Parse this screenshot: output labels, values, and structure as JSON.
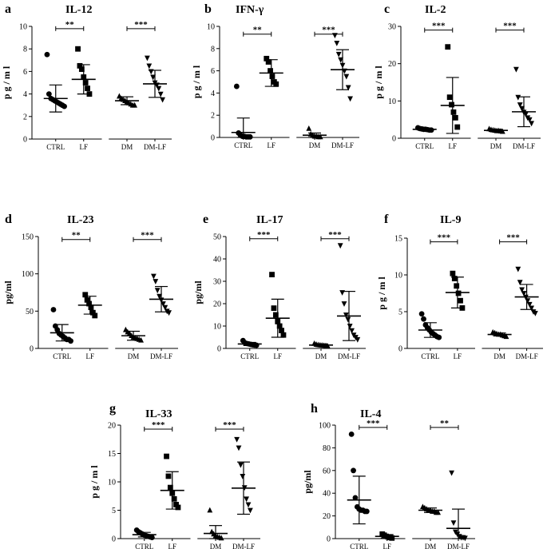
{
  "chart_data": [
    {
      "panel": "a",
      "title": "IL-12",
      "type": "scatter",
      "ylabel": "p g / m l",
      "ylim": [
        0,
        10
      ],
      "yticks": [
        0,
        2,
        4,
        6,
        8,
        10
      ],
      "categories": [
        "CTRL",
        "LF",
        "DM",
        "DM-LF"
      ],
      "groups": [
        {
          "category": "CTRL",
          "marker": "circle",
          "mean": 3.6,
          "sd": 1.2,
          "points": [
            7.5,
            4.0,
            3.6,
            3.5,
            3.4,
            3.3,
            3.2,
            3.1,
            3.0,
            2.9
          ]
        },
        {
          "category": "LF",
          "marker": "square",
          "mean": 5.3,
          "sd": 1.3,
          "points": [
            8.0,
            6.5,
            6.2,
            5.5,
            5.0,
            4.5,
            4.0
          ]
        },
        {
          "category": "DM",
          "marker": "triangle-up",
          "mean": 3.4,
          "sd": 0.35,
          "points": [
            3.8,
            3.6,
            3.5,
            3.4,
            3.3,
            3.2,
            3.1,
            3.0,
            3.0
          ]
        },
        {
          "category": "DM-LF",
          "marker": "triangle-down",
          "mean": 4.9,
          "sd": 1.2,
          "points": [
            7.2,
            6.5,
            6.0,
            5.5,
            5.0,
            4.8,
            4.5,
            4.0,
            3.5
          ]
        }
      ],
      "significance": [
        {
          "from": "CTRL",
          "to": "LF",
          "label": "**",
          "y": 9.8
        },
        {
          "from": "DM",
          "to": "DM-LF",
          "label": "***",
          "y": 9.8
        }
      ]
    },
    {
      "panel": "b",
      "title": "IFN-γ",
      "type": "scatter",
      "ylabel": "p g / m l",
      "ylim": [
        0,
        10
      ],
      "yticks": [
        0,
        2,
        4,
        6,
        8,
        10
      ],
      "categories": [
        "CTRL",
        "LF",
        "DM",
        "DM-LF"
      ],
      "groups": [
        {
          "category": "CTRL",
          "marker": "circle",
          "mean": 0.45,
          "sd": 1.3,
          "points": [
            4.6,
            0.4,
            0.2,
            0.1,
            0.1,
            0.05,
            0.05,
            0.05
          ]
        },
        {
          "category": "LF",
          "marker": "square",
          "mean": 5.8,
          "sd": 1.2,
          "points": [
            7.1,
            6.8,
            6.0,
            5.5,
            5.0,
            4.8
          ]
        },
        {
          "category": "DM",
          "marker": "triangle-up",
          "mean": 0.2,
          "sd": 0.2,
          "points": [
            0.8,
            0.3,
            0.2,
            0.1,
            0.1,
            0.05,
            0.05
          ]
        },
        {
          "category": "DM-LF",
          "marker": "triangle-down",
          "mean": 6.1,
          "sd": 1.8,
          "points": [
            9.2,
            8.5,
            7.5,
            7.0,
            6.5,
            6.0,
            5.5,
            4.5,
            3.5
          ]
        }
      ],
      "significance": [
        {
          "from": "CTRL",
          "to": "LF",
          "label": "**",
          "y": 9.3
        },
        {
          "from": "DM",
          "to": "DM-LF",
          "label": "***",
          "y": 9.3
        }
      ]
    },
    {
      "panel": "c",
      "title": "IL-2",
      "type": "scatter",
      "ylabel": "p g / m l",
      "ylim": [
        0,
        30
      ],
      "yticks": [
        0,
        10,
        20,
        30
      ],
      "categories": [
        "CTRL",
        "LF",
        "DM",
        "DM-LF"
      ],
      "groups": [
        {
          "category": "CTRL",
          "marker": "circle",
          "mean": 2.4,
          "sd": 0.3,
          "points": [
            2.8,
            2.6,
            2.5,
            2.4,
            2.4,
            2.3,
            2.2,
            2.2
          ]
        },
        {
          "category": "LF",
          "marker": "square",
          "mean": 8.8,
          "sd": 7.5,
          "points": [
            24.5,
            11.0,
            9.0,
            7.0,
            5.5,
            3.0
          ]
        },
        {
          "category": "DM",
          "marker": "triangle-up",
          "mean": 2.1,
          "sd": 0.3,
          "points": [
            2.5,
            2.3,
            2.2,
            2.1,
            2.0,
            2.0,
            1.9,
            1.8
          ]
        },
        {
          "category": "DM-LF",
          "marker": "triangle-down",
          "mean": 7.1,
          "sd": 4.0,
          "points": [
            18.5,
            11.0,
            9.0,
            8.0,
            7.0,
            6.5,
            5.5,
            5.0,
            4.0
          ]
        }
      ],
      "significance": [
        {
          "from": "CTRL",
          "to": "LF",
          "label": "***",
          "y": 29.0
        },
        {
          "from": "DM",
          "to": "DM-LF",
          "label": "***",
          "y": 29.0
        }
      ]
    },
    {
      "panel": "d",
      "title": "IL-23",
      "type": "scatter",
      "ylabel": "pg/ml",
      "ylim": [
        0,
        150
      ],
      "yticks": [
        0,
        50,
        100,
        150
      ],
      "categories": [
        "CTRL",
        "LF",
        "DM",
        "DM-LF"
      ],
      "groups": [
        {
          "category": "CTRL",
          "marker": "circle",
          "mean": 21,
          "sd": 11,
          "points": [
            52,
            30,
            25,
            20,
            18,
            16,
            14,
            12,
            12,
            10
          ]
        },
        {
          "category": "LF",
          "marker": "square",
          "mean": 58,
          "sd": 12,
          "points": [
            72,
            65,
            60,
            55,
            48,
            44
          ]
        },
        {
          "category": "DM",
          "marker": "triangle-up",
          "mean": 17,
          "sd": 6,
          "points": [
            25,
            22,
            20,
            17,
            15,
            14,
            13,
            12,
            11
          ]
        },
        {
          "category": "DM-LF",
          "marker": "triangle-down",
          "mean": 66,
          "sd": 17,
          "points": [
            97,
            90,
            78,
            70,
            65,
            60,
            55,
            50,
            48
          ]
        }
      ],
      "significance": [
        {
          "from": "CTRL",
          "to": "LF",
          "label": "**",
          "y": 146
        },
        {
          "from": "DM",
          "to": "DM-LF",
          "label": "***",
          "y": 146
        }
      ]
    },
    {
      "panel": "e",
      "title": "IL-17",
      "type": "scatter",
      "ylabel": "pg/ml",
      "ylim": [
        0,
        50
      ],
      "yticks": [
        0,
        10,
        20,
        30,
        40,
        50
      ],
      "categories": [
        "CTRL",
        "LF",
        "DM",
        "DM-LF"
      ],
      "groups": [
        {
          "category": "CTRL",
          "marker": "circle",
          "mean": 2.0,
          "sd": 0.7,
          "points": [
            3.5,
            2.5,
            2.2,
            2.0,
            1.8,
            1.6,
            1.5,
            1.4
          ]
        },
        {
          "category": "LF",
          "marker": "square",
          "mean": 13.5,
          "sd": 8.5,
          "points": [
            33,
            18,
            15,
            12,
            10,
            8,
            6
          ]
        },
        {
          "category": "DM",
          "marker": "triangle-up",
          "mean": 1.5,
          "sd": 0.5,
          "points": [
            2.2,
            1.8,
            1.6,
            1.5,
            1.4,
            1.3,
            1.2,
            1.0
          ]
        },
        {
          "category": "DM-LF",
          "marker": "triangle-down",
          "mean": 14.5,
          "sd": 11,
          "points": [
            46,
            25,
            20,
            15,
            13,
            10,
            8,
            6,
            5,
            4
          ]
        }
      ],
      "significance": [
        {
          "from": "CTRL",
          "to": "LF",
          "label": "***",
          "y": 49
        },
        {
          "from": "DM",
          "to": "DM-LF",
          "label": "***",
          "y": 49
        }
      ]
    },
    {
      "panel": "f",
      "title": "IL-9",
      "type": "scatter",
      "ylabel": "p g / m l",
      "ylim": [
        0,
        15
      ],
      "yticks": [
        0,
        5,
        10,
        15
      ],
      "categories": [
        "CTRL",
        "LF",
        "DM",
        "DM-LF"
      ],
      "groups": [
        {
          "category": "CTRL",
          "marker": "circle",
          "mean": 2.5,
          "sd": 1.0,
          "points": [
            4.7,
            4.0,
            3.2,
            2.8,
            2.5,
            2.2,
            2.0,
            1.8,
            1.6,
            1.5
          ]
        },
        {
          "category": "LF",
          "marker": "square",
          "mean": 7.6,
          "sd": 2.1,
          "points": [
            10.2,
            9.5,
            8.5,
            7.5,
            6.5,
            5.5
          ]
        },
        {
          "category": "DM",
          "marker": "triangle-up",
          "mean": 1.9,
          "sd": 0.2,
          "points": [
            2.2,
            2.1,
            2.0,
            1.9,
            1.9,
            1.8,
            1.7,
            1.6
          ]
        },
        {
          "category": "DM-LF",
          "marker": "triangle-down",
          "mean": 7.0,
          "sd": 1.7,
          "points": [
            10.8,
            9.0,
            8.0,
            7.5,
            7.0,
            6.5,
            6.0,
            5.5,
            5.0,
            4.8
          ]
        }
      ],
      "significance": [
        {
          "from": "CTRL",
          "to": "LF",
          "label": "***",
          "y": 14.5
        },
        {
          "from": "DM",
          "to": "DM-LF",
          "label": "***",
          "y": 14.5
        }
      ]
    },
    {
      "panel": "g",
      "title": "IL-33",
      "type": "scatter",
      "ylabel": "p g / m l",
      "ylim": [
        0,
        20
      ],
      "yticks": [
        0,
        5,
        10,
        15,
        20
      ],
      "categories": [
        "CTRL",
        "LF",
        "DM",
        "DM-LF"
      ],
      "groups": [
        {
          "category": "CTRL",
          "marker": "circle",
          "mean": 0.7,
          "sd": 0.4,
          "points": [
            1.5,
            1.2,
            1.0,
            0.8,
            0.6,
            0.5,
            0.4,
            0.3,
            0.2
          ]
        },
        {
          "category": "LF",
          "marker": "square",
          "mean": 8.5,
          "sd": 3.3,
          "points": [
            14.5,
            11,
            9,
            8,
            7,
            6,
            5.5
          ]
        },
        {
          "category": "DM",
          "marker": "triangle-up",
          "mean": 0.9,
          "sd": 1.4,
          "points": [
            5.0,
            1.2,
            0.8,
            0.5,
            0.3,
            0.2,
            0.1
          ]
        },
        {
          "category": "DM-LF",
          "marker": "triangle-down",
          "mean": 8.9,
          "sd": 4.6,
          "points": [
            17.5,
            16,
            13,
            11,
            9,
            7,
            6,
            5
          ]
        }
      ],
      "significance": [
        {
          "from": "CTRL",
          "to": "LF",
          "label": "***",
          "y": 19.3
        },
        {
          "from": "DM",
          "to": "DM-LF",
          "label": "***",
          "y": 19.3
        }
      ]
    },
    {
      "panel": "h",
      "title": "IL-4",
      "type": "scatter",
      "ylabel": "pg/ml",
      "ylim": [
        0,
        100
      ],
      "yticks": [
        0,
        20,
        40,
        60,
        80,
        100
      ],
      "categories": [
        "CTRL",
        "LF",
        "DM",
        "DM-LF"
      ],
      "groups": [
        {
          "category": "CTRL",
          "marker": "circle",
          "mean": 34,
          "sd": 21,
          "points": [
            92,
            60,
            36,
            28,
            26,
            25,
            25,
            24,
            24
          ]
        },
        {
          "category": "LF",
          "marker": "square",
          "mean": 2.0,
          "sd": 1.5,
          "points": [
            4.0,
            3.0,
            2.0,
            1.5,
            1.0,
            0.5
          ]
        },
        {
          "category": "DM",
          "marker": "triangle-up",
          "mean": 25,
          "sd": 2,
          "points": [
            28,
            27,
            26,
            25,
            25,
            24,
            24,
            23,
            23
          ]
        },
        {
          "category": "DM-LF",
          "marker": "triangle-down",
          "mean": 9,
          "sd": 17,
          "points": [
            58,
            14,
            6,
            4,
            2,
            1,
            1,
            0.5
          ]
        }
      ],
      "significance": [
        {
          "from": "CTRL",
          "to": "LF",
          "label": "***",
          "y": 98
        },
        {
          "from": "DM",
          "to": "DM-LF",
          "label": "**",
          "y": 98
        }
      ]
    }
  ]
}
